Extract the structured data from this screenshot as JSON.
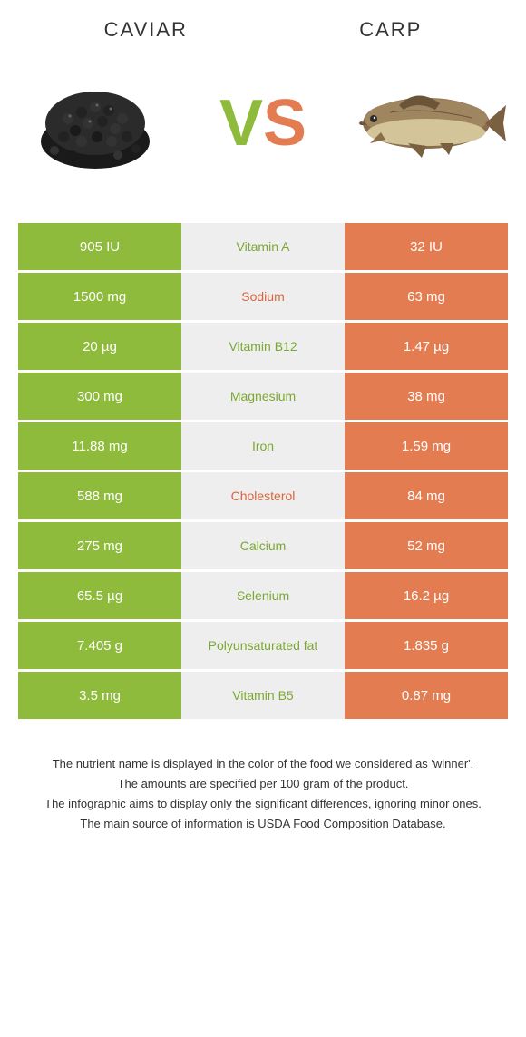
{
  "header": {
    "left_title": "Caviar",
    "right_title": "Carp",
    "vs_v": "V",
    "vs_s": "S"
  },
  "colors": {
    "green": "#8ebb3b",
    "orange": "#e47c51",
    "grey_bg": "#eeeeee",
    "mid_green": "#7ca832",
    "mid_orange": "#d9663e",
    "text": "#333333"
  },
  "table": {
    "rows": [
      {
        "left": "905 IU",
        "nutrient": "Vitamin A",
        "right": "32 IU",
        "winner": "green"
      },
      {
        "left": "1500 mg",
        "nutrient": "Sodium",
        "right": "63 mg",
        "winner": "orange"
      },
      {
        "left": "20 µg",
        "nutrient": "Vitamin B12",
        "right": "1.47 µg",
        "winner": "green"
      },
      {
        "left": "300 mg",
        "nutrient": "Magnesium",
        "right": "38 mg",
        "winner": "green"
      },
      {
        "left": "11.88 mg",
        "nutrient": "Iron",
        "right": "1.59 mg",
        "winner": "green"
      },
      {
        "left": "588 mg",
        "nutrient": "Cholesterol",
        "right": "84 mg",
        "winner": "orange"
      },
      {
        "left": "275 mg",
        "nutrient": "Calcium",
        "right": "52 mg",
        "winner": "green"
      },
      {
        "left": "65.5 µg",
        "nutrient": "Selenium",
        "right": "16.2 µg",
        "winner": "green"
      },
      {
        "left": "7.405 g",
        "nutrient": "Polyunsaturated fat",
        "right": "1.835 g",
        "winner": "green"
      },
      {
        "left": "3.5 mg",
        "nutrient": "Vitamin B5",
        "right": "0.87 mg",
        "winner": "green"
      }
    ]
  },
  "footer": {
    "line1": "The nutrient name is displayed in the color of the food we considered as 'winner'.",
    "line2": "The amounts are specified per 100 gram of the product.",
    "line3": "The infographic aims to display only the significant differences, ignoring minor ones.",
    "line4": "The main source of information is USDA Food Composition Database."
  }
}
